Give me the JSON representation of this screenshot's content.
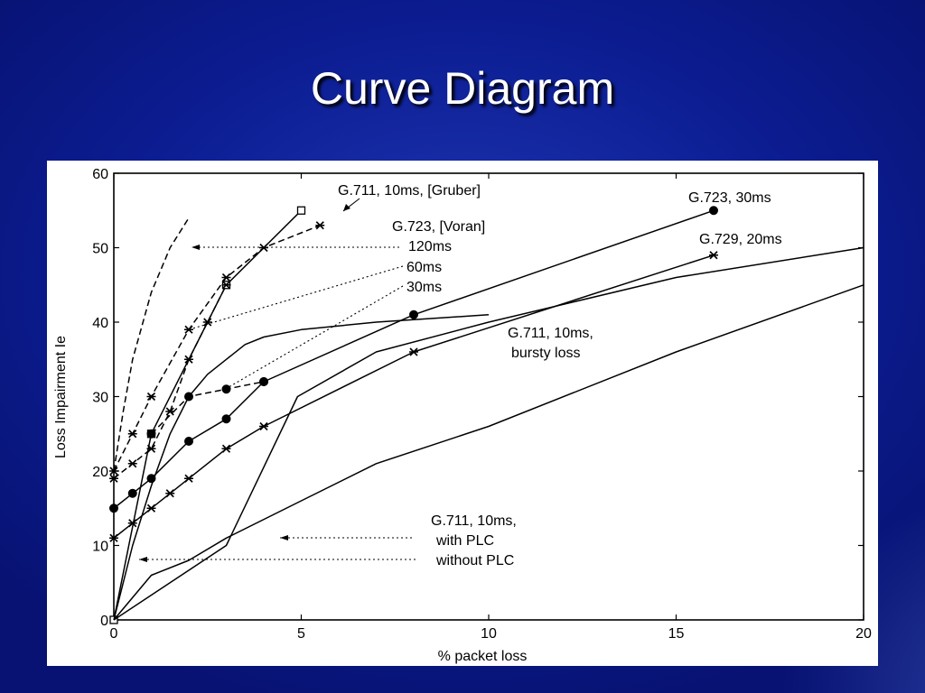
{
  "slide": {
    "title": "Curve Diagram"
  },
  "chart_data": {
    "type": "line",
    "title": "",
    "xlabel": "% packet loss",
    "ylabel": "Loss Impairment Ie",
    "xlim": [
      0,
      20
    ],
    "ylim": [
      0,
      60
    ],
    "xticks": [
      0,
      5,
      10,
      15,
      20
    ],
    "yticks": [
      0,
      10,
      20,
      30,
      40,
      50,
      60
    ],
    "grid": false,
    "series": [
      {
        "name": "G.711, 10ms, [Gruber]",
        "dash": "solid",
        "marker": "square",
        "x": [
          0,
          1,
          3,
          5
        ],
        "y": [
          0,
          25,
          45,
          55
        ]
      },
      {
        "name": "G.723, 30ms",
        "dash": "solid",
        "marker": "dot",
        "x": [
          0,
          0.5,
          1,
          2,
          3,
          4,
          8,
          16
        ],
        "y": [
          15,
          17,
          19,
          24,
          27,
          32,
          41,
          55
        ]
      },
      {
        "name": "G.729, 20ms",
        "dash": "solid",
        "marker": "star",
        "x": [
          0,
          0.5,
          1,
          1.5,
          2,
          3,
          4,
          8,
          16
        ],
        "y": [
          11,
          13,
          15,
          17,
          19,
          23,
          26,
          36,
          49
        ]
      },
      {
        "name": "G.711, 10ms, bursty loss",
        "dash": "solid",
        "marker": "none",
        "x": [
          0,
          3,
          4.9,
          7,
          10,
          15,
          20
        ],
        "y": [
          0,
          10,
          30,
          36,
          40,
          46,
          50
        ]
      },
      {
        "name": "G.711, 10ms, with PLC",
        "dash": "solid",
        "marker": "none",
        "x": [
          0,
          1,
          2,
          3,
          5,
          7,
          10,
          15,
          20
        ],
        "y": [
          0,
          6,
          8,
          11,
          16,
          21,
          26,
          36,
          45
        ]
      },
      {
        "name": "G.711, 10ms, without PLC",
        "dash": "solid",
        "marker": "none",
        "x": [
          0,
          0.5,
          1,
          1.5,
          2,
          2.5,
          3,
          3.5,
          4,
          5,
          7,
          10
        ],
        "y": [
          0,
          10,
          18,
          25,
          30,
          33,
          35,
          37,
          38,
          39,
          40,
          41
        ]
      },
      {
        "name": "G.723, [Voran] 120ms",
        "dash": "dashed",
        "marker": "none",
        "x": [
          0,
          0.25,
          0.5,
          1,
          1.5,
          2
        ],
        "y": [
          20,
          28,
          35,
          44,
          50,
          54
        ]
      },
      {
        "name": "G.723, [Voran] 60ms",
        "dash": "dashed",
        "marker": "star",
        "x": [
          0,
          0.5,
          1,
          2,
          3,
          4,
          5.5
        ],
        "y": [
          20,
          25,
          30,
          39,
          46,
          50,
          53
        ]
      },
      {
        "name": "G.723, [Voran] 30ms",
        "dash": "dashed",
        "marker": "star",
        "x": [
          0,
          0.5,
          1,
          1.5,
          2,
          2.5,
          3
        ],
        "y": [
          19,
          21,
          23,
          28,
          35,
          40,
          45
        ]
      },
      {
        "name": "G.723, [Voran] 30ms (lower)",
        "dash": "dashed",
        "marker": "dot",
        "x": [
          1,
          2,
          3,
          4
        ],
        "y": [
          25,
          30,
          31,
          32
        ]
      }
    ],
    "annotations": {
      "gruber": "G.711, 10ms, [Gruber]",
      "voran": "G.723, [Voran]",
      "voran_120": "120ms",
      "voran_60": "60ms",
      "voran_30": "30ms",
      "g723_30": "G.723, 30ms",
      "g729_20": "G.729, 20ms",
      "bursty_1": "G.711, 10ms,",
      "bursty_2": "bursty loss",
      "plc_1": "G.711, 10ms,",
      "plc_2": "with PLC",
      "plc_3": "without PLC"
    }
  }
}
